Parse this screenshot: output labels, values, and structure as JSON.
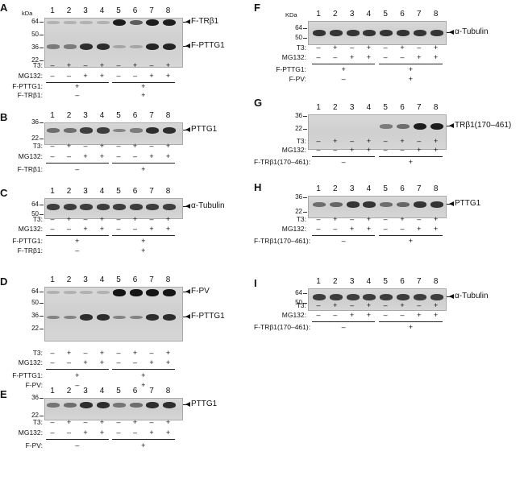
{
  "lanes": [
    "1",
    "2",
    "3",
    "4",
    "5",
    "6",
    "7",
    "8"
  ],
  "kda_label": "kDa",
  "kda_label_alt": "KDa",
  "panels": [
    {
      "id": "A",
      "letter": "A",
      "kda_label": "kDa",
      "markers": [
        "64",
        "50",
        "36",
        "22"
      ],
      "bands": [
        {
          "label": "F-TRβ1",
          "intensity": [
            0.05,
            0.05,
            0.05,
            0.05,
            0.95,
            0.55,
            0.95,
            0.95
          ]
        },
        {
          "label": "F-PTTG1",
          "intensity": [
            0.35,
            0.35,
            0.85,
            0.85,
            0.1,
            0.1,
            0.9,
            0.9
          ]
        }
      ],
      "treatments": [
        {
          "label": "T3:",
          "signs": [
            "–",
            "+",
            "–",
            "+",
            "–",
            "+",
            "–",
            "+"
          ]
        },
        {
          "label": "MG132:",
          "signs": [
            "–",
            "–",
            "+",
            "+",
            "–",
            "–",
            "+",
            "+"
          ]
        }
      ],
      "transfections": [
        {
          "label": "F-PTTG1:",
          "groups": [
            "+",
            "+"
          ]
        },
        {
          "label": "F-TRβ1:",
          "groups": [
            "–",
            "+"
          ]
        }
      ]
    },
    {
      "id": "B",
      "letter": "B",
      "kda_label": "",
      "markers": [
        "36",
        "22"
      ],
      "bands": [
        {
          "label": "PTTG1",
          "intensity": [
            0.45,
            0.45,
            0.75,
            0.75,
            0.3,
            0.35,
            0.85,
            0.85
          ]
        }
      ],
      "treatments": [
        {
          "label": "T3:",
          "signs": [
            "–",
            "+",
            "–",
            "+",
            "–",
            "+",
            "–",
            "+"
          ]
        },
        {
          "label": "MG132:",
          "signs": [
            "–",
            "–",
            "+",
            "+",
            "–",
            "–",
            "+",
            "+"
          ]
        }
      ],
      "transfections": [
        {
          "label": "F-TRβ1:",
          "groups": [
            "–",
            "+"
          ]
        }
      ]
    },
    {
      "id": "C",
      "letter": "C",
      "kda_label": "",
      "markers": [
        "64",
        "50"
      ],
      "bands": [
        {
          "label": "α-Tubulin",
          "intensity": [
            0.75,
            0.75,
            0.75,
            0.75,
            0.75,
            0.75,
            0.75,
            0.75
          ]
        }
      ],
      "treatments": [
        {
          "label": "T3:",
          "signs": [
            "–",
            "+",
            "–",
            "+",
            "–",
            "+",
            "–",
            "+"
          ]
        },
        {
          "label": "MG132:",
          "signs": [
            "–",
            "–",
            "+",
            "+",
            "–",
            "–",
            "+",
            "+"
          ]
        }
      ],
      "transfections": [
        {
          "label": "F-PTTG1:",
          "groups": [
            "+",
            "+"
          ]
        },
        {
          "label": "F-TRβ1:",
          "groups": [
            "–",
            "+"
          ]
        }
      ]
    },
    {
      "id": "D",
      "letter": "D",
      "kda_label": "",
      "markers": [
        "64",
        "50",
        "36",
        "22"
      ],
      "bands": [
        {
          "label": "F-PV",
          "intensity": [
            0.05,
            0.05,
            0.05,
            0.05,
            1,
            1,
            1,
            1
          ]
        },
        {
          "label": "F-PTTG1",
          "intensity": [
            0.3,
            0.3,
            0.85,
            0.85,
            0.3,
            0.3,
            0.85,
            0.85
          ]
        }
      ],
      "treatments": [
        {
          "label": "T3:",
          "signs": [
            "–",
            "+",
            "–",
            "+",
            "–",
            "+",
            "–",
            "+"
          ]
        },
        {
          "label": "MG132:",
          "signs": [
            "–",
            "–",
            "+",
            "+",
            "–",
            "–",
            "+",
            "+"
          ]
        }
      ],
      "transfections": [
        {
          "label": "F-PTTG1:",
          "groups": [
            "+",
            "+"
          ]
        },
        {
          "label": "F-PV:",
          "groups": [
            "–",
            "+"
          ]
        }
      ]
    },
    {
      "id": "E",
      "letter": "E",
      "kda_label": "",
      "markers": [
        "36",
        "22"
      ],
      "bands": [
        {
          "label": "PTTG1",
          "intensity": [
            0.4,
            0.45,
            0.85,
            0.85,
            0.4,
            0.45,
            0.85,
            0.85
          ]
        }
      ],
      "treatments": [
        {
          "label": "T3:",
          "signs": [
            "–",
            "+",
            "–",
            "+",
            "–",
            "+",
            "–",
            "+"
          ]
        },
        {
          "label": "MG132:",
          "signs": [
            "–",
            "–",
            "+",
            "+",
            "–",
            "–",
            "+",
            "+"
          ]
        }
      ],
      "transfections": [
        {
          "label": "F-PV:",
          "groups": [
            "–",
            "+"
          ]
        }
      ]
    },
    {
      "id": "F",
      "letter": "F",
      "kda_label": "KDa",
      "markers": [
        "64",
        "50"
      ],
      "bands": [
        {
          "label": "α-Tubulin",
          "intensity": [
            0.8,
            0.8,
            0.8,
            0.8,
            0.8,
            0.8,
            0.8,
            0.8
          ]
        }
      ],
      "treatments": [
        {
          "label": "T3:",
          "signs": [
            "–",
            "+",
            "–",
            "+",
            "–",
            "+",
            "–",
            "+"
          ]
        },
        {
          "label": "MG132:",
          "signs": [
            "–",
            "–",
            "+",
            "+",
            "–",
            "–",
            "+",
            "+"
          ]
        }
      ],
      "transfections": [
        {
          "label": "F-PTTG1:",
          "groups": [
            "+",
            "+"
          ]
        },
        {
          "label": "F-PV:",
          "groups": [
            "–",
            "+"
          ]
        }
      ]
    },
    {
      "id": "G",
      "letter": "G",
      "kda_label": "",
      "markers": [
        "36",
        "22"
      ],
      "bands": [
        {
          "label": "TRβ1(170–461)",
          "intensity": [
            0,
            0,
            0,
            0,
            0.35,
            0.45,
            0.95,
            0.95
          ]
        }
      ],
      "treatments": [
        {
          "label": "T3:",
          "signs": [
            "–",
            "+",
            "–",
            "+",
            "–",
            "+",
            "–",
            "+"
          ]
        },
        {
          "label": "MG132:",
          "signs": [
            "–",
            "–",
            "+",
            "+",
            "–",
            "–",
            "+",
            "+"
          ]
        }
      ],
      "transfections": [
        {
          "label": "F-TRβ1(170–461):",
          "groups": [
            "–",
            "+"
          ]
        }
      ]
    },
    {
      "id": "H",
      "letter": "H",
      "kda_label": "",
      "markers": [
        "36",
        "22"
      ],
      "bands": [
        {
          "label": "PTTG1",
          "intensity": [
            0.45,
            0.5,
            0.8,
            0.8,
            0.45,
            0.5,
            0.8,
            0.8
          ]
        }
      ],
      "treatments": [
        {
          "label": "T3:",
          "signs": [
            "–",
            "+",
            "–",
            "+",
            "–",
            "+",
            "–",
            "+"
          ]
        },
        {
          "label": "MG132:",
          "signs": [
            "–",
            "–",
            "+",
            "+",
            "–",
            "–",
            "+",
            "+"
          ]
        }
      ],
      "transfections": [
        {
          "label": "F-TRβ1(170–461):",
          "groups": [
            "–",
            "+"
          ]
        }
      ]
    },
    {
      "id": "I",
      "letter": "I",
      "kda_label": "",
      "markers": [
        "64",
        "50"
      ],
      "bands": [
        {
          "label": "α-Tubulin",
          "intensity": [
            0.75,
            0.75,
            0.75,
            0.75,
            0.75,
            0.75,
            0.75,
            0.75
          ]
        }
      ],
      "treatments": [
        {
          "label": "T3:",
          "signs": [
            "–",
            "+",
            "–",
            "+",
            "–",
            "+",
            "–",
            "+"
          ]
        },
        {
          "label": "MG132:",
          "signs": [
            "–",
            "–",
            "+",
            "+",
            "–",
            "–",
            "+",
            "+"
          ]
        }
      ],
      "transfections": [
        {
          "label": "F-TRβ1(170–461):",
          "groups": [
            "–",
            "+"
          ]
        }
      ]
    }
  ]
}
